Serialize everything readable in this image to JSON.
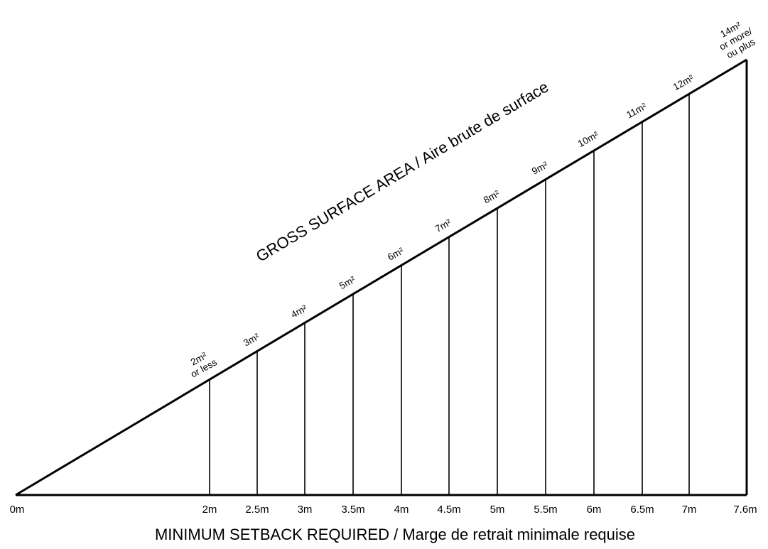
{
  "chart_data": {
    "type": "diagram",
    "xlabel": "MINIMUM SETBACK REQUIRED / Marge de retrait minimale requise",
    "hypotenuse_label": "GROSS SURFACE AREA / Aire brute de surface",
    "x_start_label": "0m",
    "points": [
      {
        "setback_m": 2,
        "setback_label": "2m",
        "area_lines": [
          "2m²",
          "or less"
        ]
      },
      {
        "setback_m": 2.5,
        "setback_label": "2.5m",
        "area_lines": [
          "3m²"
        ]
      },
      {
        "setback_m": 3,
        "setback_label": "3m",
        "area_lines": [
          "4m²"
        ]
      },
      {
        "setback_m": 3.5,
        "setback_label": "3.5m",
        "area_lines": [
          "5m²"
        ]
      },
      {
        "setback_m": 4,
        "setback_label": "4m",
        "area_lines": [
          "6m²"
        ]
      },
      {
        "setback_m": 4.5,
        "setback_label": "4.5m",
        "area_lines": [
          "7m²"
        ]
      },
      {
        "setback_m": 5,
        "setback_label": "5m",
        "area_lines": [
          "8m²"
        ]
      },
      {
        "setback_m": 5.5,
        "setback_label": "5.5m",
        "area_lines": [
          "9m²"
        ]
      },
      {
        "setback_m": 6,
        "setback_label": "6m",
        "area_lines": [
          "10m²"
        ]
      },
      {
        "setback_m": 6.5,
        "setback_label": "6.5m",
        "area_lines": [
          "11m²"
        ]
      },
      {
        "setback_m": 7,
        "setback_label": "7m",
        "area_lines": [
          "12m²"
        ]
      },
      {
        "setback_m": 7.6,
        "setback_label": "7.6m",
        "area_lines": [
          "14m²",
          "or more/",
          "ou plus"
        ]
      }
    ],
    "xlim": [
      0,
      7.6
    ],
    "line_color": "#000000",
    "background": "#ffffff"
  }
}
